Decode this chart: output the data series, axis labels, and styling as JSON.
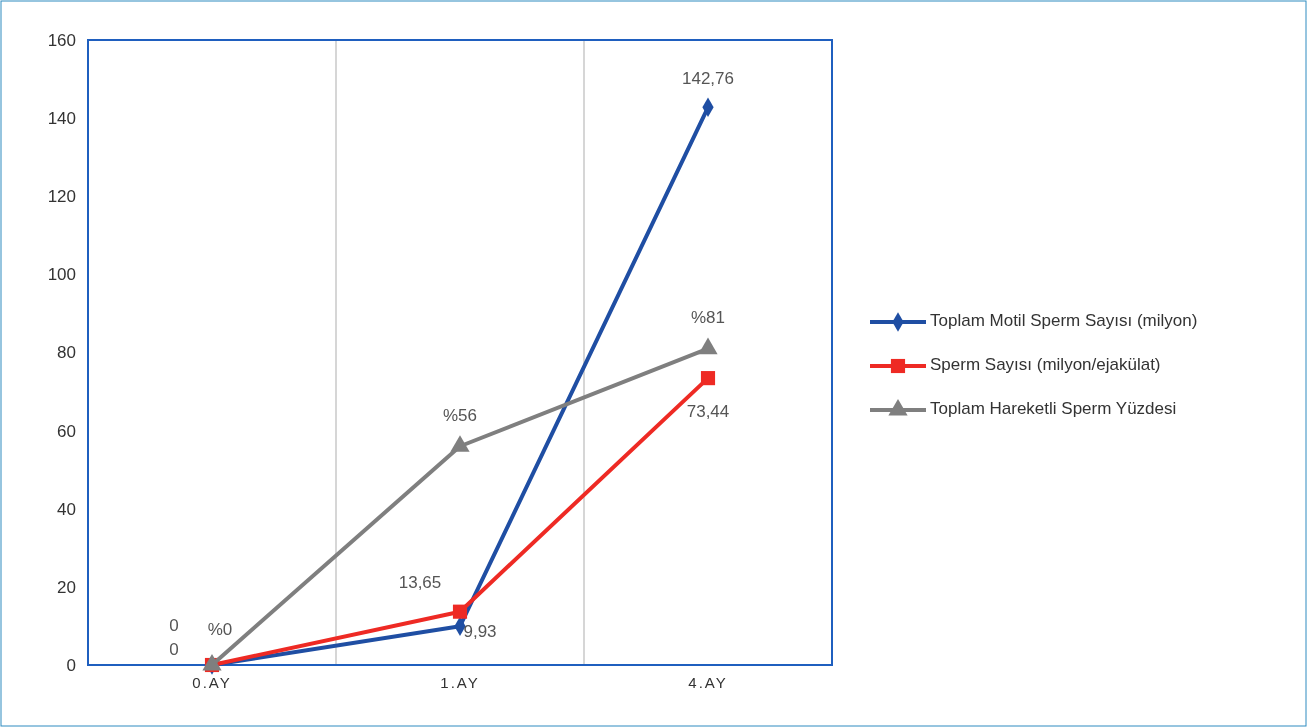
{
  "chart_data": {
    "type": "line",
    "categories": [
      "0.AY",
      "1.AY",
      "4.AY"
    ],
    "series": [
      {
        "name": "Toplam Motil Sperm Sayısı (milyon)",
        "color": "#1f4ea3",
        "marker": "diamond",
        "values": [
          0,
          9.93,
          142.76
        ],
        "value_labels": [
          "0",
          "9,93",
          "142,76"
        ]
      },
      {
        "name": "Sperm Sayısı (milyon/ejakülat)",
        "color": "#ee2a24",
        "marker": "square",
        "values": [
          0,
          13.65,
          73.44
        ],
        "value_labels": [
          "0",
          "13,65",
          "73,44"
        ]
      },
      {
        "name": "Toplam Hareketli Sperm Yüzdesi",
        "color": "#7f7f7f",
        "marker": "triangle",
        "values": [
          0,
          56,
          81
        ],
        "value_labels": [
          "%0",
          "%56",
          "%81"
        ]
      }
    ],
    "ylim": [
      0,
      160
    ],
    "yticks": [
      0,
      20,
      40,
      60,
      80,
      100,
      120,
      140,
      160
    ],
    "grid": "x",
    "legend": "right"
  }
}
